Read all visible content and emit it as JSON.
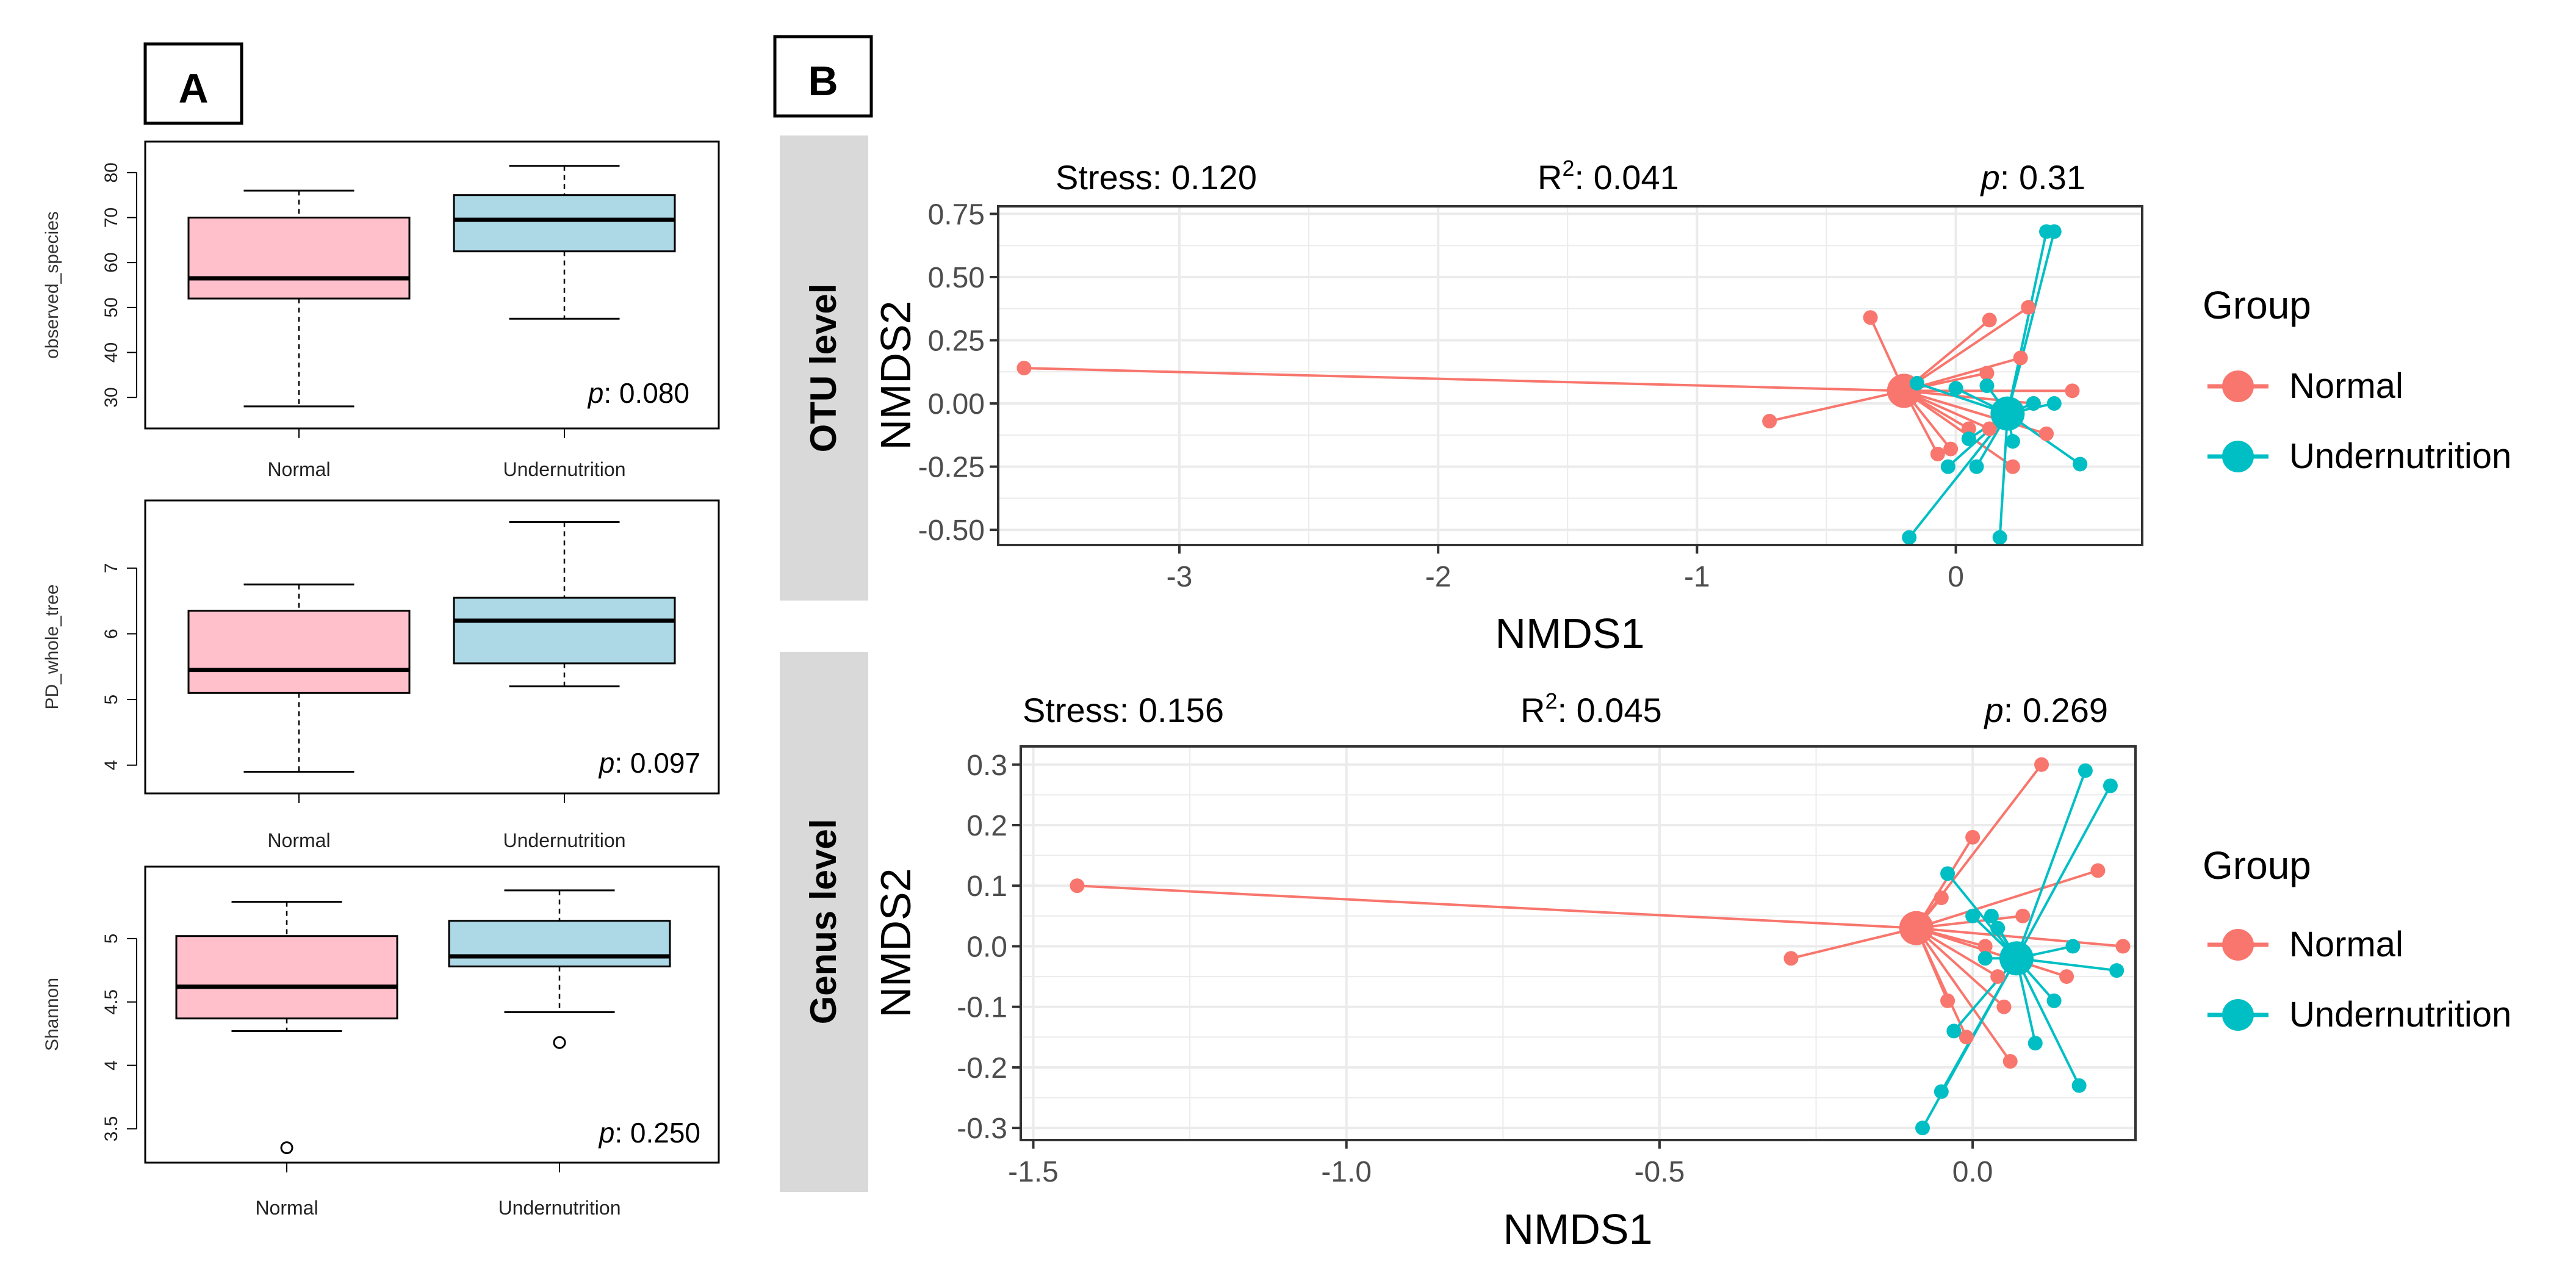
{
  "panel_labels": {
    "a": "A",
    "b": "B"
  },
  "colors": {
    "normal_box": "#FFC0CB",
    "under_box": "#ADD8E6",
    "normal": "#F8766D",
    "under": "#00BFC4",
    "strip": "#D9D9D9",
    "grid": "#EBEBEB"
  },
  "legend": {
    "title": "Group",
    "normal": "Normal",
    "under": "Undernutrition"
  },
  "chart_data": [
    {
      "type": "box",
      "ylabel": "observed_species",
      "categories": [
        "Normal",
        "Undernutrition"
      ],
      "yticks": [
        30,
        40,
        50,
        60,
        70,
        80
      ],
      "ylim": [
        25,
        85
      ],
      "boxes": [
        {
          "whisker_low": 28,
          "q1": 52,
          "median": 56.5,
          "q3": 70,
          "whisker_high": 76,
          "outliers": []
        },
        {
          "whisker_low": 47.5,
          "q1": 62.5,
          "median": 69.5,
          "q3": 75,
          "whisker_high": 81.5,
          "outliers": []
        }
      ],
      "p_label": "p",
      "p_value": ": 0.080"
    },
    {
      "type": "box",
      "ylabel": "PD_whole_tree",
      "categories": [
        "Normal",
        "Undernutrition"
      ],
      "yticks": [
        4,
        5,
        6,
        7
      ],
      "ylim": [
        3.7,
        7.9
      ],
      "boxes": [
        {
          "whisker_low": 3.9,
          "q1": 5.1,
          "median": 5.45,
          "q3": 6.35,
          "whisker_high": 6.75,
          "outliers": []
        },
        {
          "whisker_low": 5.2,
          "q1": 5.55,
          "median": 6.2,
          "q3": 6.55,
          "whisker_high": 7.7,
          "outliers": []
        }
      ],
      "p_label": "p",
      "p_value": ": 0.097"
    },
    {
      "type": "box",
      "ylabel": "Shannon",
      "categories": [
        "Normal",
        "Undernutrition"
      ],
      "yticks": [
        3.5,
        4.0,
        4.5,
        5.0
      ],
      "ylim": [
        3.3,
        5.5
      ],
      "boxes": [
        {
          "whisker_low": 4.27,
          "q1": 4.37,
          "median": 4.62,
          "q3": 5.02,
          "whisker_high": 5.29,
          "outliers": [
            3.35
          ]
        },
        {
          "whisker_low": 4.42,
          "q1": 4.78,
          "median": 4.86,
          "q3": 5.14,
          "whisker_high": 5.38,
          "outliers": [
            4.18
          ]
        }
      ],
      "p_label": "p",
      "p_value": ": 0.250"
    },
    {
      "type": "scatter",
      "strip_label": "OTU level",
      "xlabel": "NMDS1",
      "ylabel": "NMDS2",
      "xlim": [
        -3.7,
        0.72
      ],
      "ylim": [
        -0.56,
        0.78
      ],
      "xticks": [
        -3,
        -2,
        -1,
        0
      ],
      "yticks": [
        -0.5,
        -0.25,
        0.0,
        0.25,
        0.5,
        0.75
      ],
      "stress_label": "Stress: ",
      "stress": "0.120",
      "r2_label": "R",
      "r2_sup": "2",
      "r2": ": 0.041",
      "p_label": "p",
      "p_value": ": 0.31",
      "series": [
        {
          "name": "Normal",
          "centroid": [
            -0.2,
            0.05
          ],
          "points": [
            [
              -3.6,
              0.14
            ],
            [
              -0.72,
              -0.07
            ],
            [
              -0.33,
              0.34
            ],
            [
              0.13,
              0.33
            ],
            [
              0.28,
              0.38
            ],
            [
              0.25,
              0.18
            ],
            [
              0.12,
              0.12
            ],
            [
              0.45,
              0.05
            ],
            [
              0.3,
              0.0
            ],
            [
              -0.07,
              -0.2
            ],
            [
              0.05,
              -0.1
            ],
            [
              -0.02,
              -0.18
            ],
            [
              0.22,
              -0.25
            ],
            [
              0.13,
              -0.1
            ],
            [
              0.35,
              -0.12
            ]
          ]
        },
        {
          "name": "Undernutrition",
          "centroid": [
            0.2,
            -0.04
          ],
          "points": [
            [
              0.35,
              0.68
            ],
            [
              0.38,
              0.68
            ],
            [
              0.12,
              0.07
            ],
            [
              0.0,
              0.06
            ],
            [
              -0.15,
              0.08
            ],
            [
              0.3,
              0.0
            ],
            [
              0.38,
              0.0
            ],
            [
              0.48,
              -0.24
            ],
            [
              0.17,
              -0.53
            ],
            [
              -0.03,
              -0.25
            ],
            [
              -0.18,
              -0.53
            ],
            [
              0.08,
              -0.25
            ],
            [
              0.22,
              -0.15
            ],
            [
              0.05,
              -0.14
            ]
          ]
        }
      ]
    },
    {
      "type": "scatter",
      "strip_label": "Genus level",
      "xlabel": "NMDS1",
      "ylabel": "NMDS2",
      "xlim": [
        -1.52,
        0.26
      ],
      "ylim": [
        -0.32,
        0.33
      ],
      "xticks": [
        -1.5,
        -1.0,
        -0.5,
        0.0
      ],
      "yticks": [
        -0.3,
        -0.2,
        -0.1,
        0.0,
        0.1,
        0.2,
        0.3
      ],
      "stress_label": "Stress: ",
      "stress": "0.156",
      "r2_label": "R",
      "r2_sup": "2",
      "r2": ": 0.045",
      "p_label": "p",
      "p_value": ": 0.269",
      "series": [
        {
          "name": "Normal",
          "centroid": [
            -0.09,
            0.03
          ],
          "points": [
            [
              -1.43,
              0.1
            ],
            [
              -0.29,
              -0.02
            ],
            [
              0.11,
              0.3
            ],
            [
              0.0,
              0.18
            ],
            [
              0.2,
              0.125
            ],
            [
              0.24,
              0.0
            ],
            [
              -0.05,
              0.08
            ],
            [
              0.02,
              0.0
            ],
            [
              -0.04,
              -0.09
            ],
            [
              0.05,
              -0.1
            ],
            [
              -0.01,
              -0.15
            ],
            [
              0.06,
              -0.19
            ],
            [
              0.15,
              -0.05
            ],
            [
              0.04,
              -0.05
            ],
            [
              0.08,
              0.05
            ]
          ]
        },
        {
          "name": "Undernutrition",
          "centroid": [
            0.07,
            -0.02
          ],
          "points": [
            [
              0.18,
              0.29
            ],
            [
              0.22,
              0.265
            ],
            [
              -0.04,
              0.12
            ],
            [
              0.0,
              0.05
            ],
            [
              0.03,
              0.05
            ],
            [
              0.02,
              -0.02
            ],
            [
              0.16,
              0.0
            ],
            [
              0.23,
              -0.04
            ],
            [
              -0.03,
              -0.14
            ],
            [
              -0.05,
              -0.24
            ],
            [
              -0.08,
              -0.3
            ],
            [
              0.1,
              -0.16
            ],
            [
              0.17,
              -0.23
            ],
            [
              0.13,
              -0.09
            ],
            [
              0.04,
              0.03
            ]
          ]
        }
      ]
    }
  ]
}
